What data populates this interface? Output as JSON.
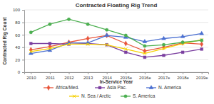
{
  "chart_data": {
    "type": "line",
    "title": "Contracted Floating Rig Trend",
    "x_label": "In-Service Year",
    "y_label": "Contracted Rig Count",
    "categories": [
      "2010",
      "2011",
      "2012",
      "2013",
      "2014",
      "2015e",
      "2016e",
      "2017e",
      "2018e",
      "2019e"
    ],
    "series": [
      {
        "name": "Africa/Med.",
        "color": "#e8543a",
        "marker": "diamond",
        "values": [
          36,
          41,
          48,
          54,
          59,
          46,
          34,
          40,
          47,
          45
        ]
      },
      {
        "name": "Asia Pac.",
        "color": "#7b3fa0",
        "marker": "square",
        "values": [
          46,
          46,
          45,
          46,
          44,
          32,
          24,
          27,
          32,
          37
        ]
      },
      {
        "name": "N. America",
        "color": "#4a6fd1",
        "marker": "triangle",
        "values": [
          30,
          35,
          47,
          47,
          59,
          56,
          49,
          54,
          57,
          62
        ]
      },
      {
        "name": "N. Sea / Arctic",
        "color": "#f5d000",
        "marker": "x",
        "values": [
          33,
          38,
          45,
          45,
          44,
          37,
          30,
          38,
          46,
          52
        ]
      },
      {
        "name": "S. America",
        "color": "#4caf50",
        "marker": "circle",
        "values": [
          64,
          77,
          85,
          77,
          68,
          59,
          42,
          44,
          48,
          51
        ]
      }
    ],
    "ylim": [
      0,
      100
    ],
    "yticks": [
      0,
      20,
      40,
      60,
      80,
      100
    ],
    "grid": true,
    "legend": "bottom"
  }
}
